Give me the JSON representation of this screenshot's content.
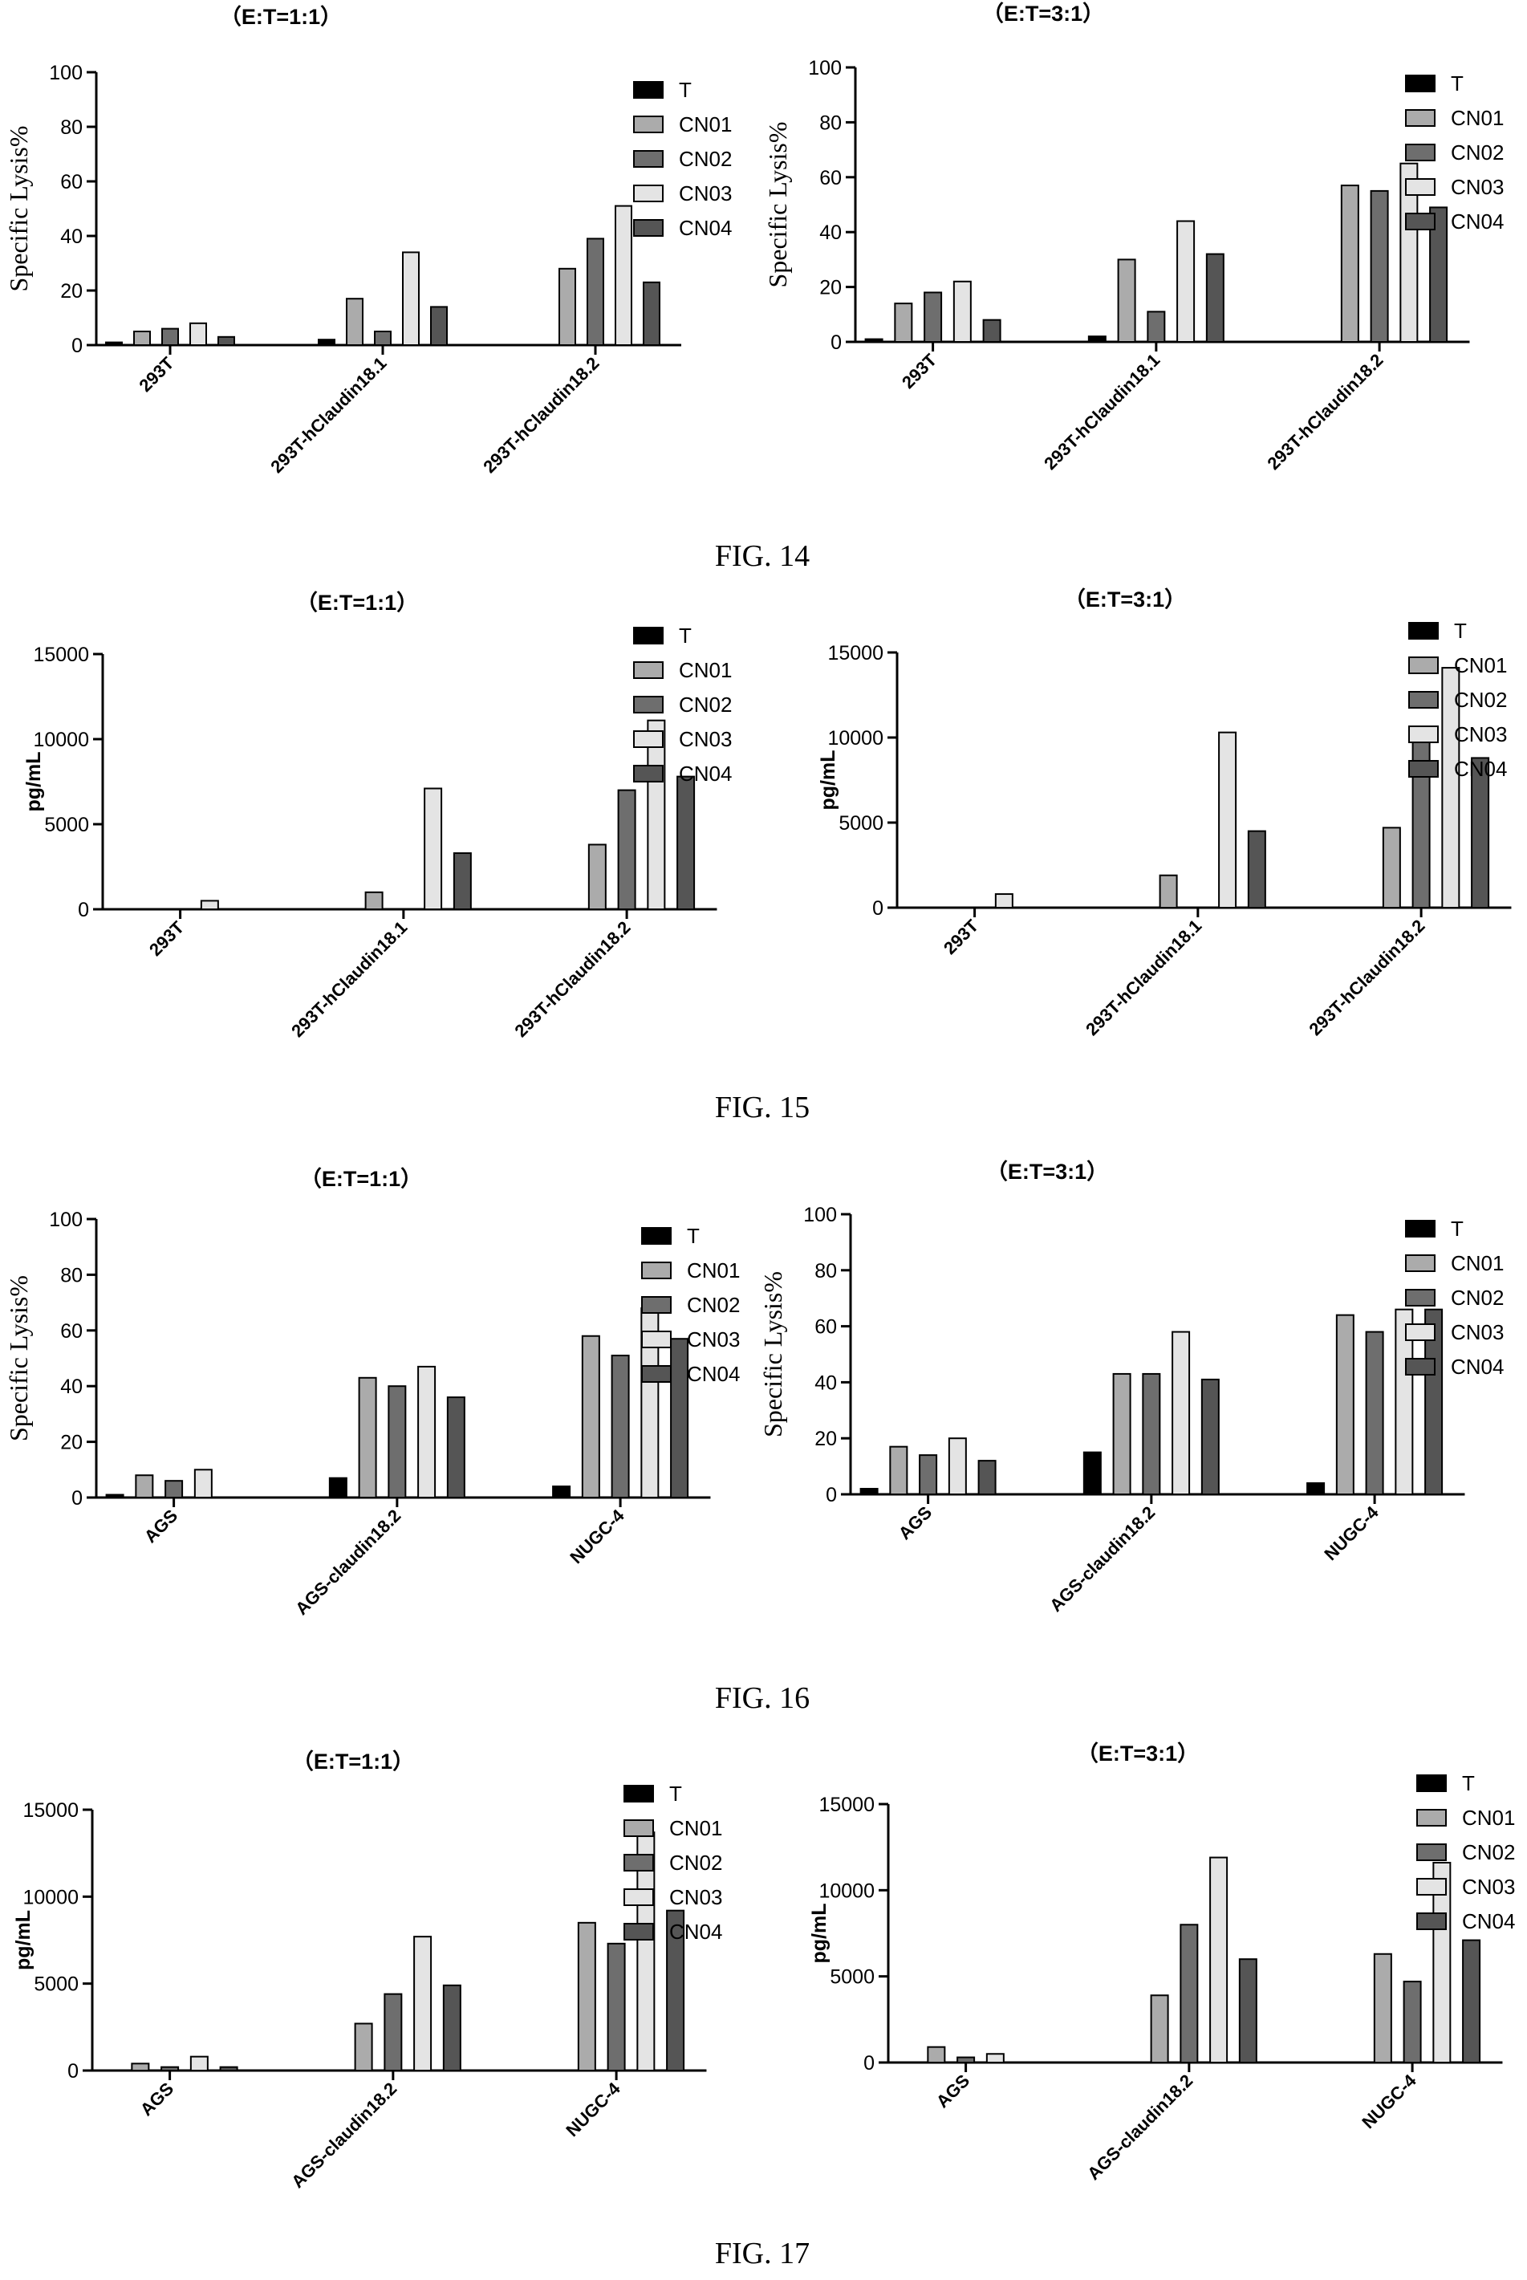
{
  "figures": [
    {
      "caption": "FIG. 14"
    },
    {
      "caption": "FIG. 15"
    },
    {
      "caption": "FIG. 16"
    },
    {
      "caption": "FIG. 17"
    }
  ],
  "series_colors": {
    "T": "#000000",
    "CN01": "#ababab",
    "CN02": "#6e6e6e",
    "CN03": "#e4e4e4",
    "CN04": "#555555"
  },
  "chart_data": [
    {
      "figure": "FIG. 14",
      "type": "bar",
      "title": "（E:T=1:1）",
      "ylabel": "Specific Lysis%",
      "ylim": [
        0,
        100
      ],
      "yticks": [
        0,
        20,
        40,
        60,
        80,
        100
      ],
      "legend": "right",
      "categories": [
        "293T",
        "293T-hClaudin18.1",
        "293T-hClaudin18.2"
      ],
      "series": [
        {
          "name": "T",
          "values": [
            1,
            2,
            0
          ]
        },
        {
          "name": "CN01",
          "values": [
            5,
            17,
            28
          ]
        },
        {
          "name": "CN02",
          "values": [
            6,
            5,
            39
          ]
        },
        {
          "name": "CN03",
          "values": [
            8,
            34,
            51
          ]
        },
        {
          "name": "CN04",
          "values": [
            3,
            14,
            23
          ]
        }
      ]
    },
    {
      "figure": "FIG. 14",
      "type": "bar",
      "title": "（E:T=3:1）",
      "ylabel": "Specific Lysis%",
      "ylim": [
        0,
        100
      ],
      "yticks": [
        0,
        20,
        40,
        60,
        80,
        100
      ],
      "legend": "right",
      "categories": [
        "293T",
        "293T-hClaudin18.1",
        "293T-hClaudin18.2"
      ],
      "series": [
        {
          "name": "T",
          "values": [
            1,
            2,
            0
          ]
        },
        {
          "name": "CN01",
          "values": [
            14,
            30,
            57
          ]
        },
        {
          "name": "CN02",
          "values": [
            18,
            11,
            55
          ]
        },
        {
          "name": "CN03",
          "values": [
            22,
            44,
            65
          ]
        },
        {
          "name": "CN04",
          "values": [
            8,
            32,
            49
          ]
        }
      ]
    },
    {
      "figure": "FIG. 15",
      "type": "bar",
      "title": "（E:T=1:1）",
      "ylabel": "pg/mL",
      "ylim": [
        0,
        15000
      ],
      "yticks": [
        0,
        5000,
        10000,
        15000
      ],
      "legend": "right",
      "categories": [
        "293T",
        "293T-hClaudin18.1",
        "293T-hClaudin18.2"
      ],
      "series": [
        {
          "name": "T",
          "values": [
            0,
            0,
            0
          ]
        },
        {
          "name": "CN01",
          "values": [
            0,
            1000,
            3800
          ]
        },
        {
          "name": "CN02",
          "values": [
            0,
            0,
            7000
          ]
        },
        {
          "name": "CN03",
          "values": [
            500,
            7100,
            11100
          ]
        },
        {
          "name": "CN04",
          "values": [
            0,
            3300,
            7800
          ]
        }
      ]
    },
    {
      "figure": "FIG. 15",
      "type": "bar",
      "title": "（E:T=3:1）",
      "ylabel": "pg/mL",
      "ylim": [
        0,
        15000
      ],
      "yticks": [
        0,
        5000,
        10000,
        15000
      ],
      "legend": "right",
      "categories": [
        "293T",
        "293T-hClaudin18.1",
        "293T-hClaudin18.2"
      ],
      "series": [
        {
          "name": "T",
          "values": [
            0,
            0,
            0
          ]
        },
        {
          "name": "CN01",
          "values": [
            0,
            1900,
            4700
          ]
        },
        {
          "name": "CN02",
          "values": [
            0,
            0,
            10100
          ]
        },
        {
          "name": "CN03",
          "values": [
            800,
            10300,
            14100
          ]
        },
        {
          "name": "CN04",
          "values": [
            0,
            4500,
            8800
          ]
        }
      ]
    },
    {
      "figure": "FIG. 16",
      "type": "bar",
      "title": "（E:T=1:1）",
      "ylabel": "Specific Lysis%",
      "ylim": [
        0,
        100
      ],
      "yticks": [
        0,
        20,
        40,
        60,
        80,
        100
      ],
      "legend": "right",
      "xtick_bold": true,
      "categories": [
        "AGS",
        "AGS-claudin18.2",
        "NUGC-4"
      ],
      "series": [
        {
          "name": "T",
          "values": [
            1,
            7,
            4
          ]
        },
        {
          "name": "CN01",
          "values": [
            8,
            43,
            58
          ]
        },
        {
          "name": "CN02",
          "values": [
            6,
            40,
            51
          ]
        },
        {
          "name": "CN03",
          "values": [
            10,
            47,
            68
          ]
        },
        {
          "name": "CN04",
          "values": [
            0,
            36,
            57
          ]
        }
      ]
    },
    {
      "figure": "FIG. 16",
      "type": "bar",
      "title": "（E:T=3:1）",
      "ylabel": "Specific Lysis%",
      "ylim": [
        0,
        100
      ],
      "yticks": [
        0,
        20,
        40,
        60,
        80,
        100
      ],
      "legend": "right",
      "xtick_bold": true,
      "categories": [
        "AGS",
        "AGS-claudin18.2",
        "NUGC-4"
      ],
      "series": [
        {
          "name": "T",
          "values": [
            2,
            15,
            4
          ]
        },
        {
          "name": "CN01",
          "values": [
            17,
            43,
            64
          ]
        },
        {
          "name": "CN02",
          "values": [
            14,
            43,
            58
          ]
        },
        {
          "name": "CN03",
          "values": [
            20,
            58,
            66
          ]
        },
        {
          "name": "CN04",
          "values": [
            12,
            41,
            66
          ]
        }
      ]
    },
    {
      "figure": "FIG. 17",
      "type": "bar",
      "title": "（E:T=1:1）",
      "ylabel": "pg/mL",
      "ylim": [
        0,
        15000
      ],
      "yticks": [
        0,
        5000,
        10000,
        15000
      ],
      "legend": "right",
      "categories": [
        "AGS",
        "AGS-claudin18.2",
        "NUGC-4"
      ],
      "series": [
        {
          "name": "T",
          "values": [
            0,
            0,
            0
          ]
        },
        {
          "name": "CN01",
          "values": [
            400,
            2700,
            8500
          ]
        },
        {
          "name": "CN02",
          "values": [
            200,
            4400,
            7300
          ]
        },
        {
          "name": "CN03",
          "values": [
            800,
            7700,
            13700
          ]
        },
        {
          "name": "CN04",
          "values": [
            200,
            4900,
            9200
          ]
        }
      ]
    },
    {
      "figure": "FIG. 17",
      "type": "bar",
      "title": "（E:T=3:1）",
      "ylabel": "pg/mL",
      "ylim": [
        0,
        15000
      ],
      "yticks": [
        0,
        5000,
        10000,
        15000
      ],
      "legend": "right",
      "categories": [
        "AGS",
        "AGS-claudin18.2",
        "NUGC-4"
      ],
      "series": [
        {
          "name": "T",
          "values": [
            0,
            0,
            0
          ]
        },
        {
          "name": "CN01",
          "values": [
            900,
            3900,
            6300
          ]
        },
        {
          "name": "CN02",
          "values": [
            300,
            8000,
            4700
          ]
        },
        {
          "name": "CN03",
          "values": [
            500,
            11900,
            11600
          ]
        },
        {
          "name": "CN04",
          "values": [
            0,
            6000,
            7100
          ]
        }
      ]
    }
  ]
}
